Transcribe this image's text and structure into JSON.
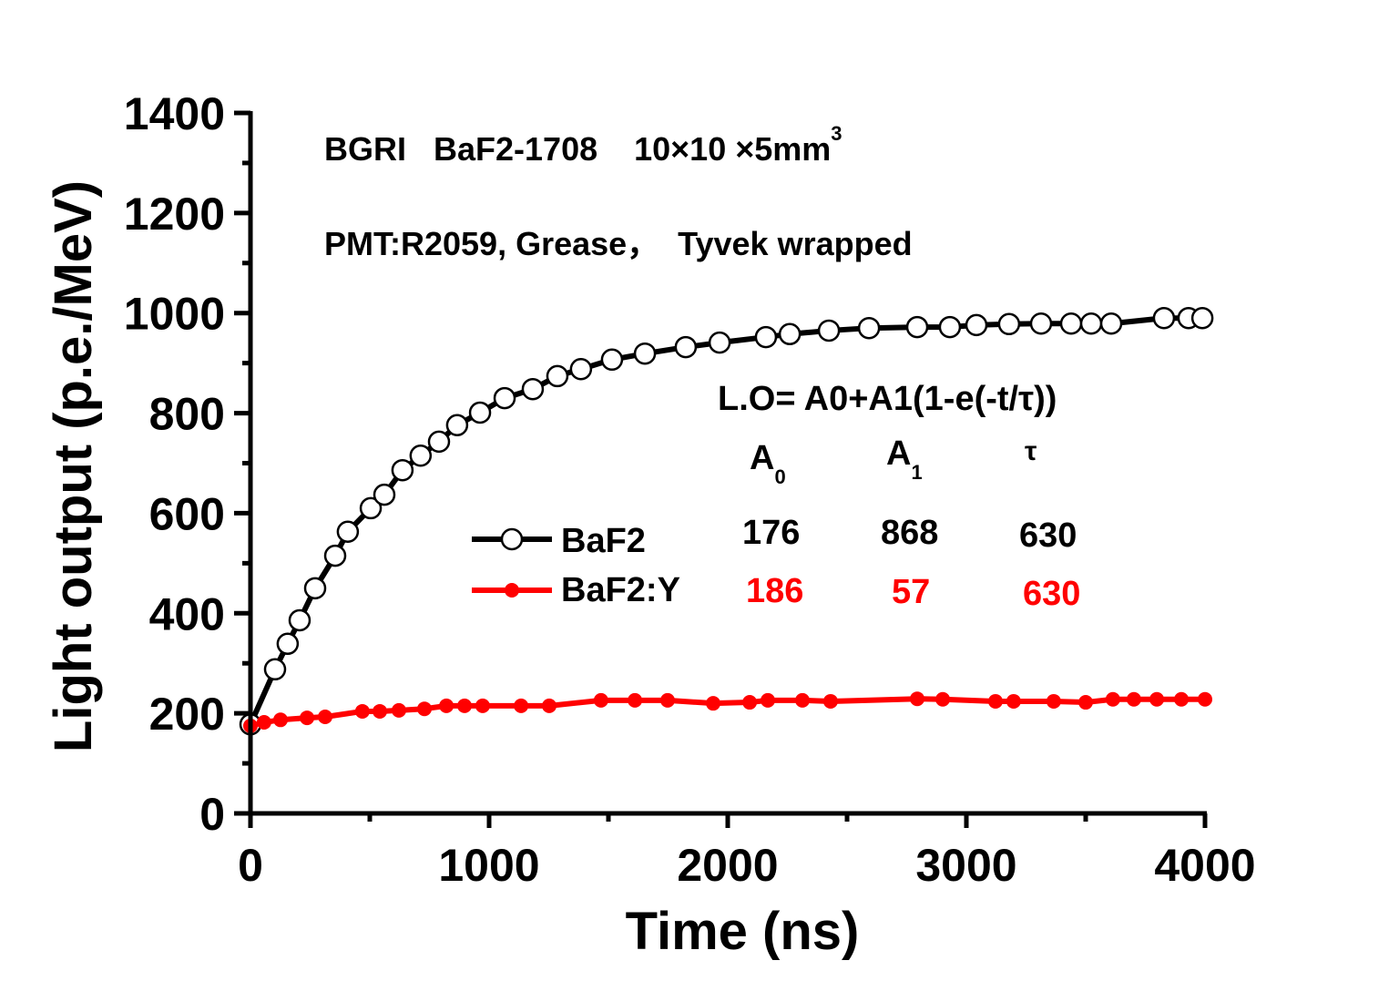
{
  "chart_data": {
    "type": "line",
    "title": "",
    "xlabel": "Time (ns)",
    "ylabel": "Light output (p.e./MeV)",
    "xlim": [
      0,
      4000
    ],
    "ylim": [
      0,
      1400
    ],
    "xticks": [
      "0",
      "1000",
      "2000",
      "3000",
      "4000"
    ],
    "yticks": [
      "0",
      "200",
      "400",
      "600",
      "800",
      "1000",
      "1200",
      "1400"
    ],
    "grid": false,
    "legend_placement": "center",
    "annotations": {
      "line1": "BGRI   BaF2-1708    10×10 ×5mm",
      "line1_sup": "3",
      "line2": "PMT:R2059, Grease，  Tyvek wrapped",
      "formula": "L.O= A0+A1(1-e(-t/τ))"
    },
    "fit_table": {
      "headers": [
        {
          "main": "A",
          "sub": "0"
        },
        {
          "main": "A",
          "sub": "1"
        },
        {
          "main": "τ",
          "sub": ""
        }
      ],
      "rows": [
        {
          "name": "BaF2",
          "values": [
            "176",
            "868",
            "630"
          ]
        },
        {
          "name": "BaF2:Y",
          "values": [
            "186",
            "57",
            "630"
          ]
        }
      ]
    },
    "series": [
      {
        "name": "BaF2",
        "color": "#000000",
        "marker": "open-circle",
        "x": [
          0,
          103,
          156,
          206,
          271,
          355,
          408,
          504,
          561,
          637,
          713,
          790,
          866,
          962,
          1065,
          1183,
          1286,
          1385,
          1515,
          1653,
          1824,
          1966,
          2160,
          2260,
          2424,
          2592,
          2794,
          2931,
          3042,
          3179,
          3313,
          3439,
          3523,
          3607,
          3828,
          3931,
          3989
        ],
        "y": [
          178,
          288,
          339,
          386,
          450,
          515,
          563,
          610,
          637,
          686,
          715,
          743,
          776,
          801,
          830,
          848,
          874,
          888,
          907,
          919,
          932,
          941,
          952,
          958,
          965,
          970,
          972,
          972,
          976,
          978,
          979,
          979,
          979,
          979,
          990,
          990,
          990
        ]
      },
      {
        "name": "BaF2:Y",
        "color": "#ff0000",
        "marker": "filled-circle",
        "x": [
          0,
          57,
          126,
          237,
          313,
          469,
          542,
          622,
          729,
          821,
          897,
          973,
          1134,
          1252,
          1469,
          1611,
          1748,
          1939,
          2092,
          2168,
          2313,
          2431,
          2794,
          2901,
          3122,
          3198,
          3366,
          3500,
          3614,
          3702,
          3798,
          3901,
          4000
        ],
        "y": [
          175,
          182,
          187,
          191,
          193,
          204,
          204,
          206,
          209,
          215,
          215,
          215,
          215,
          215,
          226,
          226,
          226,
          220,
          222,
          226,
          226,
          224,
          229,
          228,
          224,
          224,
          224,
          222,
          228,
          228,
          228,
          228,
          228
        ]
      }
    ]
  }
}
